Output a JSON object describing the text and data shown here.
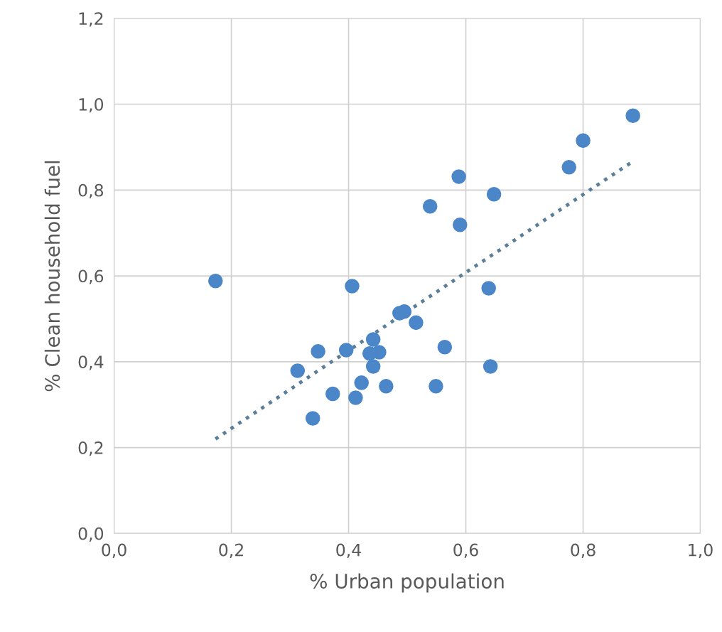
{
  "chart_data": {
    "type": "scatter",
    "xlabel": "% Urban population",
    "ylabel": "% Clean household fuel",
    "xlim": [
      0,
      1.0
    ],
    "ylim": [
      0,
      1.2
    ],
    "xticks": [
      {
        "value": 0,
        "label": "0,0"
      },
      {
        "value": 0.2,
        "label": "0,2"
      },
      {
        "value": 0.4,
        "label": "0,4"
      },
      {
        "value": 0.6,
        "label": "0,6"
      },
      {
        "value": 0.8,
        "label": "0,8"
      },
      {
        "value": 1.0,
        "label": "1,0"
      }
    ],
    "yticks": [
      {
        "value": 0,
        "label": "0,0"
      },
      {
        "value": 0.2,
        "label": "0,2"
      },
      {
        "value": 0.4,
        "label": "0,4"
      },
      {
        "value": 0.6,
        "label": "0,6"
      },
      {
        "value": 0.8,
        "label": "0,8"
      },
      {
        "value": 1.0,
        "label": "1,0"
      },
      {
        "value": 1.2,
        "label": "1,2"
      }
    ],
    "grid": true,
    "marker": "circle",
    "series": [
      {
        "color": "#4a86c8",
        "x": [
          0.885,
          0.8,
          0.776,
          0.588,
          0.648,
          0.539,
          0.59,
          0.173,
          0.406,
          0.495,
          0.515,
          0.487,
          0.639,
          0.564,
          0.642,
          0.442,
          0.452,
          0.436,
          0.442,
          0.396,
          0.348,
          0.313,
          0.422,
          0.464,
          0.549,
          0.373,
          0.412,
          0.339
        ],
        "values": [
          0.973,
          0.915,
          0.853,
          0.831,
          0.79,
          0.762,
          0.719,
          0.588,
          0.576,
          0.517,
          0.491,
          0.513,
          0.571,
          0.434,
          0.389,
          0.452,
          0.422,
          0.419,
          0.389,
          0.427,
          0.424,
          0.379,
          0.351,
          0.343,
          0.343,
          0.325,
          0.316,
          0.268
        ]
      },
      {
        "type": "line",
        "color": "#5b7f99",
        "line_style": "dotted",
        "marker": "none",
        "x": [
          0.173,
          0.882
        ],
        "values": [
          0.22,
          0.864
        ]
      }
    ]
  }
}
